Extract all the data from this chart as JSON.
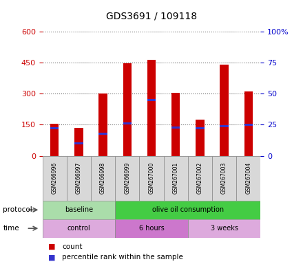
{
  "title": "GDS3691 / 109118",
  "samples": [
    "GSM266996",
    "GSM266997",
    "GSM266998",
    "GSM266999",
    "GSM267000",
    "GSM267001",
    "GSM267002",
    "GSM267003",
    "GSM267004"
  ],
  "counts": [
    155,
    135,
    300,
    448,
    465,
    305,
    175,
    440,
    310
  ],
  "percentile_ranks": [
    22,
    10,
    18,
    26,
    45,
    23,
    22,
    24,
    25
  ],
  "ylim_left": [
    0,
    600
  ],
  "yticks_left": [
    0,
    150,
    300,
    450,
    600
  ],
  "ylim_right": [
    0,
    100
  ],
  "yticks_right": [
    0,
    25,
    50,
    75,
    100
  ],
  "ytick_right_labels": [
    "0",
    "25",
    "50",
    "75",
    "100%"
  ],
  "bar_color": "#cc0000",
  "marker_color": "#3333cc",
  "protocol_groups": [
    {
      "label": "baseline",
      "start": 0,
      "end": 3,
      "color": "#aaddaa"
    },
    {
      "label": "olive oil consumption",
      "start": 3,
      "end": 9,
      "color": "#44cc44"
    }
  ],
  "time_groups": [
    {
      "label": "control",
      "start": 0,
      "end": 3,
      "color": "#ddaadd"
    },
    {
      "label": "6 hours",
      "start": 3,
      "end": 6,
      "color": "#cc77cc"
    },
    {
      "label": "3 weeks",
      "start": 6,
      "end": 9,
      "color": "#ddaadd"
    }
  ],
  "legend_count_label": "count",
  "legend_pct_label": "percentile rank within the sample",
  "left_tick_color": "#cc0000",
  "right_tick_color": "#0000cc",
  "fig_width": 4.4,
  "fig_height": 3.84,
  "dpi": 100
}
